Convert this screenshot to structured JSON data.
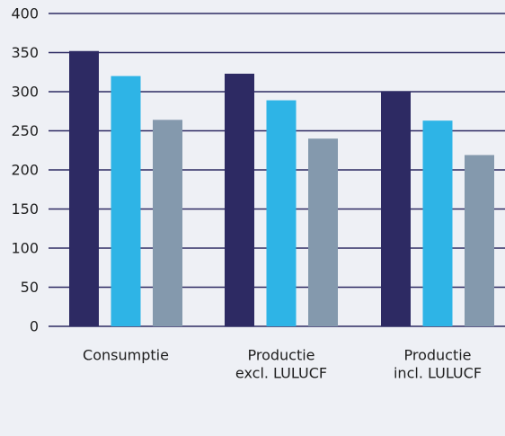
{
  "chart_data": {
    "type": "bar",
    "title": "",
    "xlabel": "",
    "ylabel": "",
    "ylim": [
      0,
      400
    ],
    "yticks": [
      0,
      50,
      100,
      150,
      200,
      250,
      300,
      350,
      400
    ],
    "grid": true,
    "legend": "none",
    "categories": [
      [
        "Consumptie"
      ],
      [
        "Productie",
        "excl. LULUCF"
      ],
      [
        "Productie",
        "incl. LULUCF"
      ]
    ],
    "series": [
      {
        "color": "#2d2a63",
        "values": [
          352,
          323,
          300
        ]
      },
      {
        "color": "#2eb4e6",
        "values": [
          320,
          289,
          263
        ]
      },
      {
        "color": "#8499ad",
        "values": [
          264,
          240,
          219
        ]
      }
    ]
  }
}
